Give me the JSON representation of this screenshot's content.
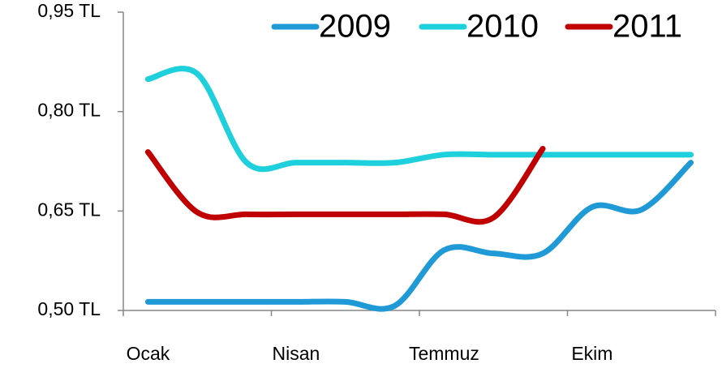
{
  "chart_data": {
    "type": "line",
    "categories": [
      "Ocak",
      null,
      null,
      "Nisan",
      null,
      null,
      "Temmuz",
      null,
      null,
      "Ekim",
      null,
      null
    ],
    "series": [
      {
        "name": "2009",
        "color": "#1f9ad6",
        "values": [
          0.513,
          0.513,
          0.513,
          0.513,
          0.513,
          0.507,
          0.591,
          0.586,
          0.586,
          0.656,
          0.652,
          0.723
        ]
      },
      {
        "name": "2010",
        "color": "#1ecfdc",
        "values": [
          0.849,
          0.857,
          0.723,
          0.723,
          0.723,
          0.723,
          0.735,
          0.735,
          0.735,
          0.735,
          0.735,
          0.735
        ]
      },
      {
        "name": "2011",
        "color": "#c00000",
        "values": [
          0.739,
          0.648,
          0.645,
          0.645,
          0.645,
          0.645,
          0.645,
          0.64,
          0.744,
          null,
          null,
          null
        ]
      }
    ],
    "ylim": [
      0.5,
      0.95
    ],
    "yticks": [
      {
        "value": 0.5,
        "label": "0,50 TL"
      },
      {
        "value": 0.65,
        "label": "0,65 TL"
      },
      {
        "value": 0.8,
        "label": "0,80 TL"
      },
      {
        "value": 0.95,
        "label": "0,95 TL"
      }
    ],
    "xtick_every": 3,
    "grid": false,
    "legend": "top-right"
  }
}
